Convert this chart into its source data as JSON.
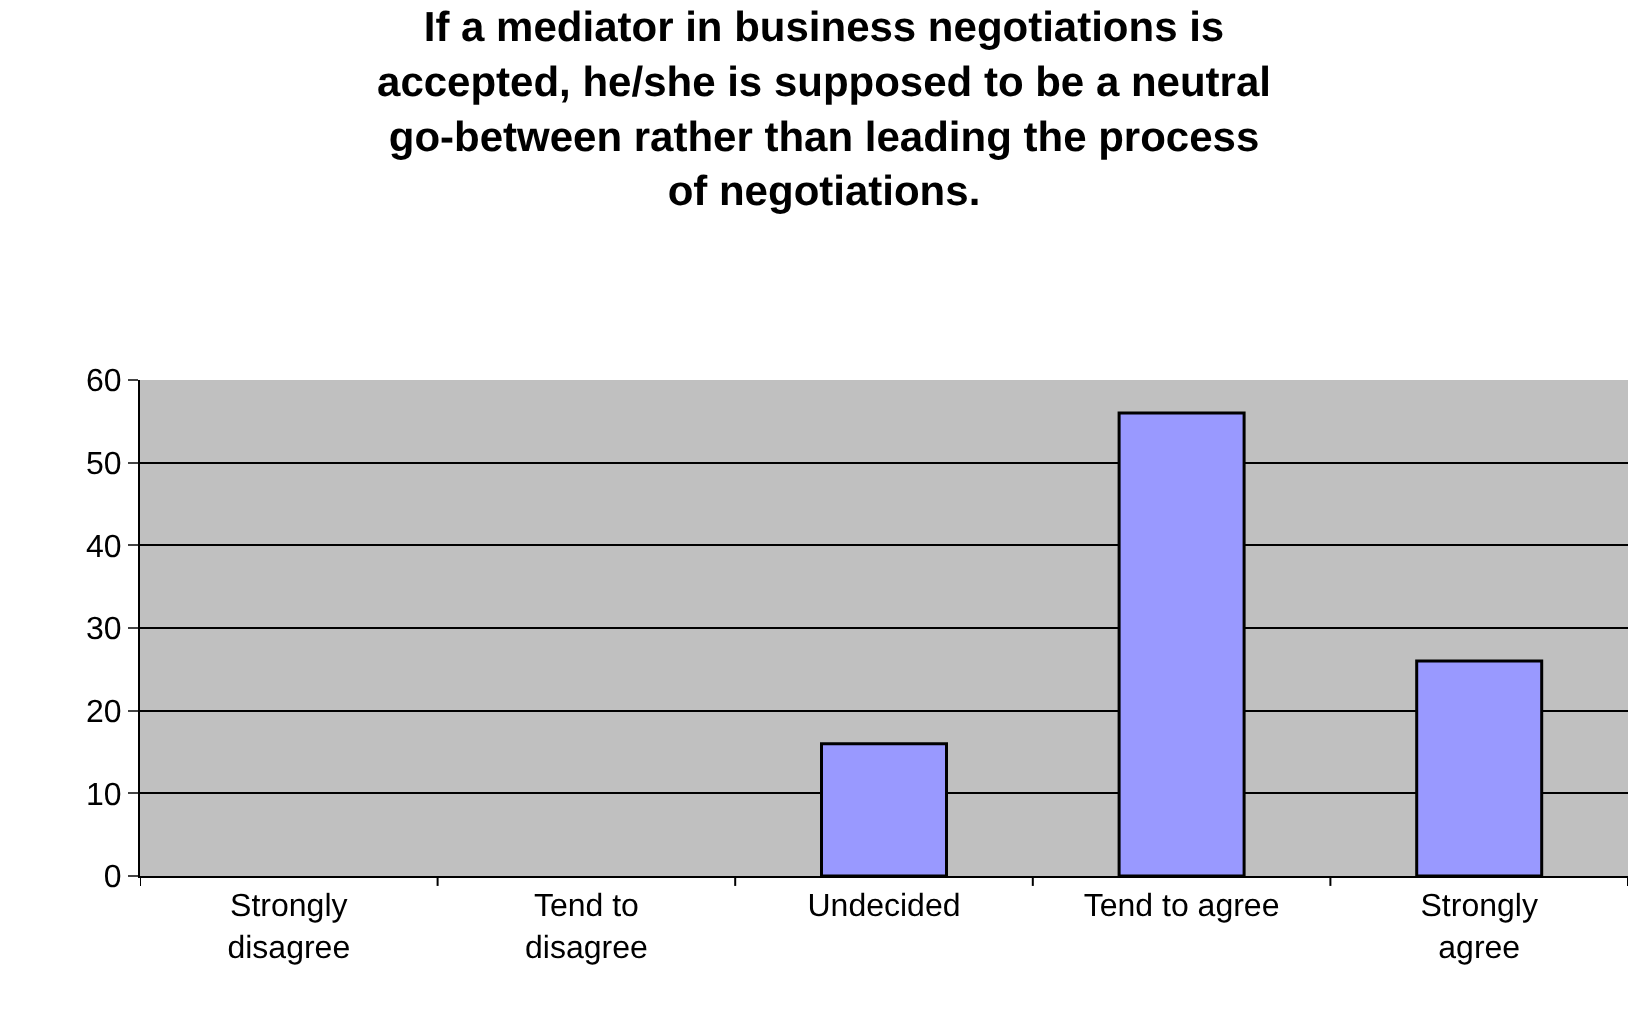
{
  "chart_data": {
    "type": "bar",
    "title": "If a mediator in business negotiations is\naccepted, he/she is supposed to be a neutral\ngo-between rather than leading the process\nof negotiations.",
    "categories": [
      "Strongly\ndisagree",
      "Tend to\ndisagree",
      "Undecided",
      "Tend to agree",
      "Strongly\nagree"
    ],
    "values": [
      null,
      null,
      16,
      56,
      26
    ],
    "color": "#9999ff",
    "ylim": [
      0,
      60
    ],
    "yticks": [
      0,
      10,
      20,
      30,
      40,
      50,
      60
    ],
    "grid": "y"
  }
}
